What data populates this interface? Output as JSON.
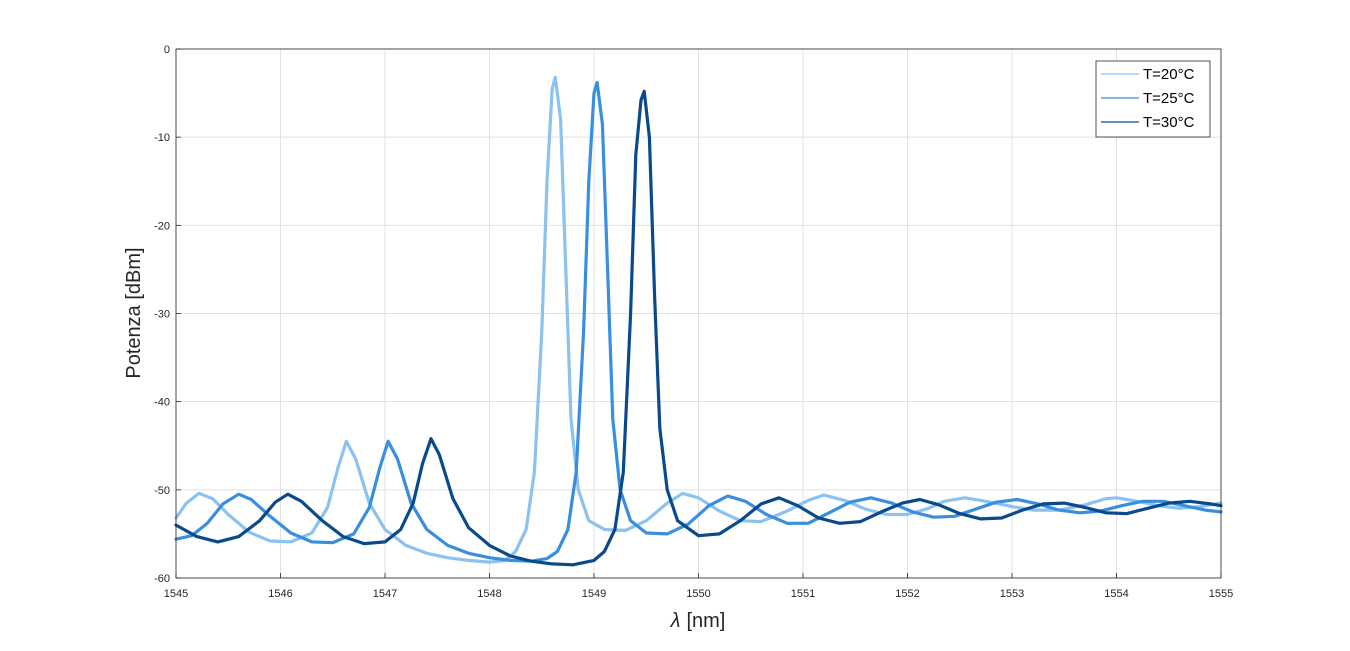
{
  "chart_data": {
    "type": "line",
    "xlabel_symbol": "λ",
    "xlabel_unit": "[nm]",
    "ylabel": "Potenza [dBm]",
    "xlim": [
      1545,
      1555
    ],
    "ylim": [
      -60,
      0
    ],
    "xticks": [
      "1545",
      "1546",
      "1547",
      "1548",
      "1549",
      "1550",
      "1551",
      "1552",
      "1553",
      "1554",
      "1555"
    ],
    "yticks": [
      "0",
      "-10",
      "-20",
      "-30",
      "-40",
      "-50",
      "-60"
    ],
    "grid": true,
    "legend_position": "top-right",
    "series": [
      {
        "name": "T=20°C",
        "color": "#8cc2f0",
        "points": [
          [
            1545.0,
            -53.2
          ],
          [
            1545.1,
            -51.5
          ],
          [
            1545.22,
            -50.4
          ],
          [
            1545.35,
            -51.0
          ],
          [
            1545.5,
            -52.8
          ],
          [
            1545.7,
            -54.8
          ],
          [
            1545.9,
            -55.8
          ],
          [
            1546.1,
            -55.9
          ],
          [
            1546.3,
            -54.9
          ],
          [
            1546.45,
            -52.0
          ],
          [
            1546.55,
            -47.5
          ],
          [
            1546.63,
            -44.5
          ],
          [
            1546.72,
            -46.5
          ],
          [
            1546.85,
            -51.5
          ],
          [
            1547.0,
            -54.5
          ],
          [
            1547.2,
            -56.3
          ],
          [
            1547.4,
            -57.2
          ],
          [
            1547.6,
            -57.7
          ],
          [
            1547.8,
            -58.0
          ],
          [
            1548.0,
            -58.2
          ],
          [
            1548.15,
            -58.0
          ],
          [
            1548.25,
            -57.0
          ],
          [
            1548.35,
            -54.5
          ],
          [
            1548.43,
            -48.0
          ],
          [
            1548.5,
            -32.0
          ],
          [
            1548.55,
            -15.0
          ],
          [
            1548.6,
            -4.5
          ],
          [
            1548.63,
            -3.2
          ],
          [
            1548.68,
            -8.0
          ],
          [
            1548.73,
            -25.0
          ],
          [
            1548.78,
            -42.0
          ],
          [
            1548.85,
            -50.0
          ],
          [
            1548.95,
            -53.5
          ],
          [
            1549.1,
            -54.5
          ],
          [
            1549.3,
            -54.6
          ],
          [
            1549.5,
            -53.5
          ],
          [
            1549.7,
            -51.5
          ],
          [
            1549.85,
            -50.4
          ],
          [
            1550.0,
            -50.9
          ],
          [
            1550.2,
            -52.4
          ],
          [
            1550.4,
            -53.5
          ],
          [
            1550.6,
            -53.6
          ],
          [
            1550.85,
            -52.4
          ],
          [
            1551.05,
            -51.2
          ],
          [
            1551.2,
            -50.6
          ],
          [
            1551.4,
            -51.2
          ],
          [
            1551.6,
            -52.2
          ],
          [
            1551.8,
            -52.8
          ],
          [
            1552.0,
            -52.8
          ],
          [
            1552.2,
            -52.1
          ],
          [
            1552.35,
            -51.3
          ],
          [
            1552.55,
            -50.9
          ],
          [
            1552.75,
            -51.3
          ],
          [
            1553.0,
            -51.9
          ],
          [
            1553.2,
            -52.3
          ],
          [
            1553.45,
            -52.3
          ],
          [
            1553.7,
            -51.7
          ],
          [
            1553.9,
            -51.0
          ],
          [
            1554.0,
            -50.9
          ],
          [
            1554.2,
            -51.3
          ],
          [
            1554.4,
            -51.8
          ],
          [
            1554.6,
            -52.1
          ],
          [
            1554.8,
            -51.9
          ],
          [
            1555.0,
            -51.5
          ]
        ]
      },
      {
        "name": "T=25°C",
        "color": "#3a8ee0",
        "points": [
          [
            1545.0,
            -55.6
          ],
          [
            1545.15,
            -55.2
          ],
          [
            1545.3,
            -53.8
          ],
          [
            1545.45,
            -51.6
          ],
          [
            1545.6,
            -50.5
          ],
          [
            1545.72,
            -51.1
          ],
          [
            1545.9,
            -53.0
          ],
          [
            1546.1,
            -54.9
          ],
          [
            1546.3,
            -55.9
          ],
          [
            1546.5,
            -56.0
          ],
          [
            1546.7,
            -55.0
          ],
          [
            1546.85,
            -52.0
          ],
          [
            1546.95,
            -47.5
          ],
          [
            1547.03,
            -44.5
          ],
          [
            1547.12,
            -46.5
          ],
          [
            1547.25,
            -51.5
          ],
          [
            1547.4,
            -54.5
          ],
          [
            1547.6,
            -56.3
          ],
          [
            1547.8,
            -57.2
          ],
          [
            1548.0,
            -57.7
          ],
          [
            1548.2,
            -58.0
          ],
          [
            1548.4,
            -58.1
          ],
          [
            1548.55,
            -57.8
          ],
          [
            1548.65,
            -57.0
          ],
          [
            1548.75,
            -54.5
          ],
          [
            1548.83,
            -48.0
          ],
          [
            1548.9,
            -32.0
          ],
          [
            1548.95,
            -15.0
          ],
          [
            1549.0,
            -5.0
          ],
          [
            1549.03,
            -3.8
          ],
          [
            1549.08,
            -8.5
          ],
          [
            1549.13,
            -25.0
          ],
          [
            1549.18,
            -42.0
          ],
          [
            1549.25,
            -50.0
          ],
          [
            1549.35,
            -53.5
          ],
          [
            1549.5,
            -54.9
          ],
          [
            1549.7,
            -55.0
          ],
          [
            1549.9,
            -53.9
          ],
          [
            1550.1,
            -51.8
          ],
          [
            1550.28,
            -50.7
          ],
          [
            1550.45,
            -51.3
          ],
          [
            1550.65,
            -52.8
          ],
          [
            1550.85,
            -53.8
          ],
          [
            1551.05,
            -53.8
          ],
          [
            1551.25,
            -52.6
          ],
          [
            1551.45,
            -51.4
          ],
          [
            1551.65,
            -50.9
          ],
          [
            1551.85,
            -51.5
          ],
          [
            1552.05,
            -52.5
          ],
          [
            1552.25,
            -53.1
          ],
          [
            1552.45,
            -53.0
          ],
          [
            1552.65,
            -52.2
          ],
          [
            1552.85,
            -51.4
          ],
          [
            1553.05,
            -51.1
          ],
          [
            1553.25,
            -51.6
          ],
          [
            1553.45,
            -52.3
          ],
          [
            1553.65,
            -52.6
          ],
          [
            1553.85,
            -52.4
          ],
          [
            1554.05,
            -51.8
          ],
          [
            1554.25,
            -51.3
          ],
          [
            1554.45,
            -51.3
          ],
          [
            1554.65,
            -51.8
          ],
          [
            1554.85,
            -52.3
          ],
          [
            1555.0,
            -52.5
          ]
        ]
      },
      {
        "name": "T=30°C",
        "color": "#0a4a8c",
        "points": [
          [
            1545.0,
            -54.0
          ],
          [
            1545.2,
            -55.3
          ],
          [
            1545.4,
            -55.9
          ],
          [
            1545.6,
            -55.3
          ],
          [
            1545.8,
            -53.5
          ],
          [
            1545.95,
            -51.4
          ],
          [
            1546.07,
            -50.5
          ],
          [
            1546.2,
            -51.3
          ],
          [
            1546.4,
            -53.5
          ],
          [
            1546.6,
            -55.3
          ],
          [
            1546.8,
            -56.1
          ],
          [
            1547.0,
            -55.9
          ],
          [
            1547.15,
            -54.5
          ],
          [
            1547.27,
            -51.5
          ],
          [
            1547.36,
            -47.0
          ],
          [
            1547.44,
            -44.2
          ],
          [
            1547.52,
            -46.0
          ],
          [
            1547.65,
            -51.0
          ],
          [
            1547.8,
            -54.3
          ],
          [
            1548.0,
            -56.3
          ],
          [
            1548.2,
            -57.5
          ],
          [
            1548.4,
            -58.1
          ],
          [
            1548.6,
            -58.4
          ],
          [
            1548.8,
            -58.5
          ],
          [
            1549.0,
            -58.0
          ],
          [
            1549.1,
            -57.0
          ],
          [
            1549.2,
            -54.5
          ],
          [
            1549.28,
            -48.0
          ],
          [
            1549.35,
            -30.0
          ],
          [
            1549.4,
            -12.0
          ],
          [
            1549.45,
            -5.8
          ],
          [
            1549.48,
            -4.8
          ],
          [
            1549.53,
            -10.0
          ],
          [
            1549.58,
            -28.0
          ],
          [
            1549.63,
            -43.0
          ],
          [
            1549.7,
            -50.0
          ],
          [
            1549.8,
            -53.5
          ],
          [
            1550.0,
            -55.2
          ],
          [
            1550.2,
            -55.0
          ],
          [
            1550.4,
            -53.5
          ],
          [
            1550.6,
            -51.6
          ],
          [
            1550.77,
            -50.9
          ],
          [
            1550.95,
            -51.8
          ],
          [
            1551.15,
            -53.2
          ],
          [
            1551.35,
            -53.8
          ],
          [
            1551.55,
            -53.6
          ],
          [
            1551.75,
            -52.5
          ],
          [
            1551.95,
            -51.5
          ],
          [
            1552.12,
            -51.1
          ],
          [
            1552.3,
            -51.7
          ],
          [
            1552.5,
            -52.7
          ],
          [
            1552.7,
            -53.3
          ],
          [
            1552.9,
            -53.2
          ],
          [
            1553.1,
            -52.3
          ],
          [
            1553.3,
            -51.6
          ],
          [
            1553.5,
            -51.5
          ],
          [
            1553.7,
            -52.0
          ],
          [
            1553.9,
            -52.6
          ],
          [
            1554.1,
            -52.7
          ],
          [
            1554.3,
            -52.1
          ],
          [
            1554.5,
            -51.5
          ],
          [
            1554.7,
            -51.3
          ],
          [
            1554.9,
            -51.6
          ],
          [
            1555.0,
            -51.8
          ]
        ]
      }
    ]
  }
}
